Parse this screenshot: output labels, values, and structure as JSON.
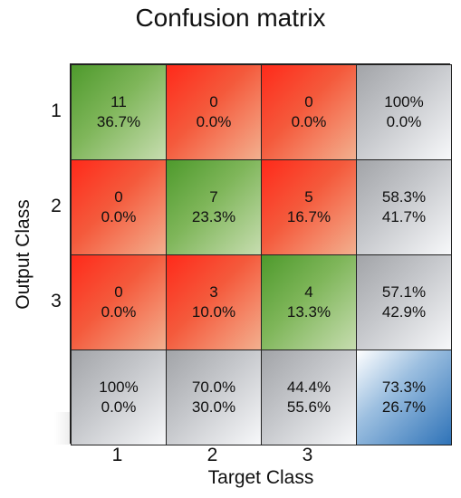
{
  "chart_data": {
    "type": "heatmap",
    "title": "Confusion matrix",
    "xlabel": "Target Class",
    "ylabel": "Output Class",
    "x_ticks": [
      "1",
      "2",
      "3"
    ],
    "y_ticks": [
      "1",
      "2",
      "3"
    ],
    "rows": [
      [
        {
          "top": "11",
          "bottom": "36.7%",
          "style": "correct"
        },
        {
          "top": "0",
          "bottom": "0.0%",
          "style": "incorrect"
        },
        {
          "top": "0",
          "bottom": "0.0%",
          "style": "incorrect"
        },
        {
          "top": "100%",
          "bottom": "0.0%",
          "style": "summary"
        }
      ],
      [
        {
          "top": "0",
          "bottom": "0.0%",
          "style": "incorrect"
        },
        {
          "top": "7",
          "bottom": "23.3%",
          "style": "correct"
        },
        {
          "top": "5",
          "bottom": "16.7%",
          "style": "incorrect"
        },
        {
          "top": "58.3%",
          "bottom": "41.7%",
          "style": "summary"
        }
      ],
      [
        {
          "top": "0",
          "bottom": "0.0%",
          "style": "incorrect"
        },
        {
          "top": "3",
          "bottom": "10.0%",
          "style": "incorrect"
        },
        {
          "top": "4",
          "bottom": "13.3%",
          "style": "correct"
        },
        {
          "top": "57.1%",
          "bottom": "42.9%",
          "style": "summary"
        }
      ],
      [
        {
          "top": "100%",
          "bottom": "0.0%",
          "style": "summary"
        },
        {
          "top": "70.0%",
          "bottom": "30.0%",
          "style": "summary"
        },
        {
          "top": "44.4%",
          "bottom": "55.6%",
          "style": "summary"
        },
        {
          "top": "73.3%",
          "bottom": "26.7%",
          "style": "overall"
        }
      ]
    ],
    "colors": {
      "correct": "#6aa84f",
      "incorrect": "#ff3b24",
      "summary": "#b7b9bd",
      "overall": "#3a7bbf"
    }
  }
}
